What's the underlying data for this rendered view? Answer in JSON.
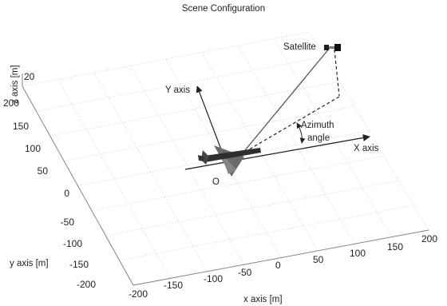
{
  "title": "Scene Configuration",
  "axes": {
    "x_label": "x axis [m]",
    "y_label": "y axis [m]",
    "z_label": "z axis [m]",
    "x_ticks": [
      "-200",
      "-150",
      "-100",
      "-50",
      "0",
      "50",
      "100",
      "150",
      "200"
    ],
    "y_ticks": [
      "-200",
      "-150",
      "-100",
      "-50",
      "0",
      "50",
      "100",
      "150",
      "200"
    ],
    "z_ticks": [
      "20"
    ]
  },
  "annotations": {
    "satellite": "Satellite",
    "y_axis": "Y axis",
    "x_axis": "X axis",
    "azimuth_line1": "Azimuth",
    "azimuth_line2": "angle",
    "origin": "O"
  },
  "colors": {
    "grid": "#cfcfcf",
    "box": "#7a7a7a",
    "arrows": "#222222",
    "aircraft": "#555555",
    "satellite": "#111111"
  }
}
